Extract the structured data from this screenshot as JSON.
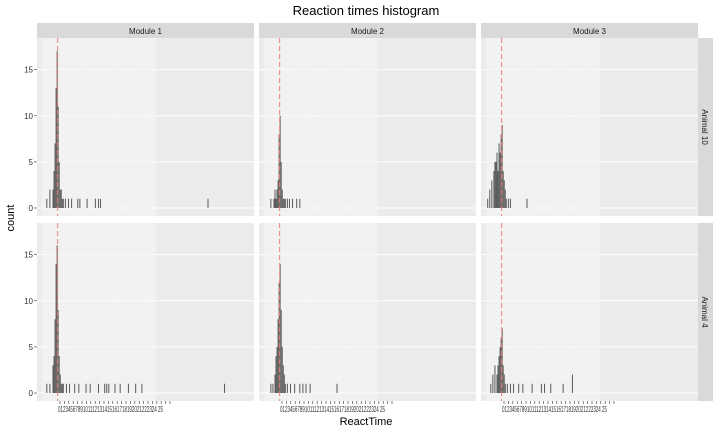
{
  "chart_data": {
    "type": "histogram",
    "title": "Reaction times histogram",
    "xlabel": "ReactTime",
    "ylabel": "count",
    "ylim": [
      0,
      18
    ],
    "y_ticks": [
      0,
      5,
      10,
      15
    ],
    "x_tick_labels": [
      "0",
      "1",
      "2",
      "3",
      "4",
      "5",
      "6",
      "7",
      "8",
      "9",
      "10",
      "11",
      "12",
      "13",
      "14",
      "15",
      "16",
      "17",
      "18",
      "19",
      "20",
      "21",
      "22",
      "23",
      "24",
      "25"
    ],
    "x_tick_display": "0123456789101112131415161718192021222324 25",
    "columns": [
      "Module 1",
      "Module 2",
      "Module 3"
    ],
    "rows": [
      "Animal 10",
      "Animal 4"
    ],
    "reference_line_color": "#e8826f",
    "panels": [
      {
        "row": "Animal 10",
        "column": "Module 1",
        "vline": 0.5,
        "bars": [
          [
            -0.6,
            1
          ],
          [
            -0.3,
            2
          ],
          [
            0,
            2
          ],
          [
            0.1,
            4
          ],
          [
            0.2,
            7
          ],
          [
            0.3,
            13
          ],
          [
            0.4,
            17
          ],
          [
            0.5,
            11
          ],
          [
            0.6,
            5
          ],
          [
            0.7,
            2
          ],
          [
            0.8,
            2
          ],
          [
            0.9,
            1
          ],
          [
            1.0,
            1
          ],
          [
            1.2,
            1
          ],
          [
            1.5,
            1
          ],
          [
            1.8,
            1
          ],
          [
            2.4,
            1
          ],
          [
            2.6,
            1
          ],
          [
            3.3,
            1
          ],
          [
            4.1,
            1
          ],
          [
            4.4,
            1
          ],
          [
            4.6,
            1
          ],
          [
            15.0,
            1
          ]
        ]
      },
      {
        "row": "Animal 10",
        "column": "Module 2",
        "vline": 0.5,
        "bars": [
          [
            -0.4,
            1
          ],
          [
            -0.1,
            1
          ],
          [
            0,
            2
          ],
          [
            0.1,
            1
          ],
          [
            0.2,
            2
          ],
          [
            0.3,
            3
          ],
          [
            0.4,
            8
          ],
          [
            0.5,
            10
          ],
          [
            0.6,
            5
          ],
          [
            0.7,
            2
          ],
          [
            0.8,
            1
          ],
          [
            0.9,
            1
          ],
          [
            1.0,
            1
          ],
          [
            1.2,
            1
          ],
          [
            1.4,
            1
          ],
          [
            1.7,
            1
          ],
          [
            2.1,
            1
          ],
          [
            2.4,
            1
          ]
        ]
      },
      {
        "row": "Animal 10",
        "column": "Module 3",
        "vline": 0.5,
        "bars": [
          [
            -0.9,
            1
          ],
          [
            -0.7,
            2
          ],
          [
            -0.5,
            3
          ],
          [
            -0.3,
            4
          ],
          [
            -0.2,
            5
          ],
          [
            -0.1,
            5
          ],
          [
            0,
            6
          ],
          [
            0.1,
            4
          ],
          [
            0.2,
            7
          ],
          [
            0.3,
            6
          ],
          [
            0.4,
            8
          ],
          [
            0.5,
            9
          ],
          [
            0.6,
            4
          ],
          [
            0.7,
            3
          ],
          [
            0.8,
            2
          ],
          [
            0.9,
            1
          ],
          [
            1.1,
            1
          ],
          [
            1.3,
            1
          ],
          [
            2.9,
            1
          ]
        ]
      },
      {
        "row": "Animal 4",
        "column": "Module 1",
        "vline": 0.5,
        "bars": [
          [
            -0.6,
            1
          ],
          [
            -0.3,
            1
          ],
          [
            0,
            3
          ],
          [
            0.1,
            4
          ],
          [
            0.2,
            8
          ],
          [
            0.3,
            14
          ],
          [
            0.4,
            16
          ],
          [
            0.5,
            9
          ],
          [
            0.6,
            4
          ],
          [
            0.7,
            2
          ],
          [
            0.8,
            1
          ],
          [
            0.9,
            1
          ],
          [
            1.0,
            1
          ],
          [
            1.3,
            1
          ],
          [
            1.6,
            1
          ],
          [
            2.1,
            1
          ],
          [
            2.5,
            1
          ],
          [
            3.2,
            1
          ],
          [
            3.6,
            1
          ],
          [
            4.4,
            1
          ],
          [
            5.0,
            1
          ],
          [
            5.2,
            1
          ],
          [
            5.4,
            1
          ],
          [
            6.0,
            1
          ],
          [
            6.5,
            1
          ],
          [
            7.3,
            1
          ],
          [
            8.0,
            1
          ],
          [
            8.6,
            1
          ],
          [
            16.6,
            1
          ]
        ]
      },
      {
        "row": "Animal 4",
        "column": "Module 2",
        "vline": 0.5,
        "bars": [
          [
            -0.4,
            1
          ],
          [
            -0.2,
            1
          ],
          [
            0,
            2
          ],
          [
            0.1,
            4
          ],
          [
            0.2,
            5
          ],
          [
            0.3,
            8
          ],
          [
            0.4,
            12
          ],
          [
            0.5,
            14
          ],
          [
            0.6,
            9
          ],
          [
            0.7,
            5
          ],
          [
            0.8,
            3
          ],
          [
            0.9,
            2
          ],
          [
            1.0,
            1
          ],
          [
            1.2,
            1
          ],
          [
            1.5,
            1
          ],
          [
            1.9,
            1
          ],
          [
            2.4,
            1
          ],
          [
            2.7,
            1
          ],
          [
            3.0,
            1
          ],
          [
            3.4,
            1
          ],
          [
            6.0,
            1
          ]
        ]
      },
      {
        "row": "Animal 4",
        "column": "Module 3",
        "vline": 0.5,
        "bars": [
          [
            -0.6,
            1
          ],
          [
            -0.4,
            2
          ],
          [
            -0.2,
            3
          ],
          [
            0,
            2
          ],
          [
            0.1,
            3
          ],
          [
            0.2,
            4
          ],
          [
            0.3,
            5
          ],
          [
            0.4,
            6
          ],
          [
            0.5,
            7
          ],
          [
            0.6,
            3
          ],
          [
            0.7,
            2
          ],
          [
            0.8,
            1
          ],
          [
            1.0,
            1
          ],
          [
            1.3,
            1
          ],
          [
            1.6,
            1
          ],
          [
            2.1,
            1
          ],
          [
            2.5,
            1
          ],
          [
            3.4,
            1
          ],
          [
            4.3,
            1
          ],
          [
            4.6,
            1
          ],
          [
            5.2,
            1
          ],
          [
            6.4,
            1
          ],
          [
            7.3,
            2
          ]
        ]
      }
    ]
  }
}
